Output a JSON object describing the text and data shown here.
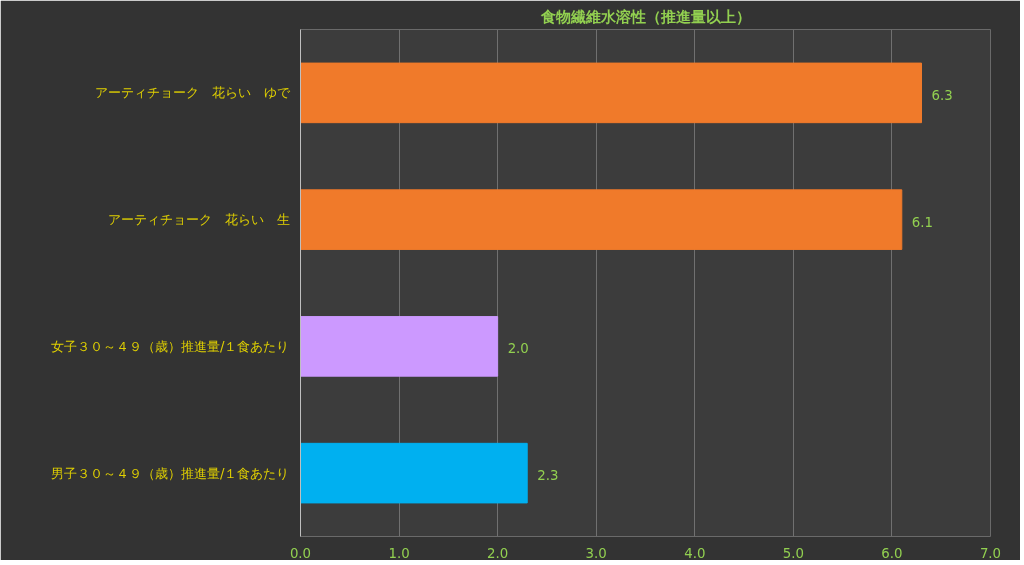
{
  "chart_data": {
    "type": "bar",
    "orientation": "horizontal",
    "title": "食物繊維水溶性（推進量以上）",
    "categories": [
      "アーティチョーク　花らい　ゆで",
      "アーティチョーク　花らい　生",
      "女子３０～４９（歳）推進量/１食あたり",
      "男子３０～４９（歳）推進量/１食あたり"
    ],
    "values": [
      6.3,
      6.1,
      2.0,
      2.3
    ],
    "colors": [
      "#f07a2a",
      "#f07a2a",
      "#cc99ff",
      "#00b0f0"
    ],
    "xlim": [
      0,
      7
    ],
    "xticks": [
      {
        "value": 0,
        "label": "0.0"
      },
      {
        "value": 1,
        "label": "1.0"
      },
      {
        "value": 2,
        "label": "2.0"
      },
      {
        "value": 3,
        "label": "3.0"
      },
      {
        "value": 4,
        "label": "4.0"
      },
      {
        "value": 5,
        "label": "5.0"
      },
      {
        "value": 6,
        "label": "6.0"
      },
      {
        "value": 7,
        "label": "7.0"
      }
    ],
    "value_labels": [
      "6.3",
      "6.1",
      "2.0",
      "2.3"
    ],
    "grid": "x"
  }
}
